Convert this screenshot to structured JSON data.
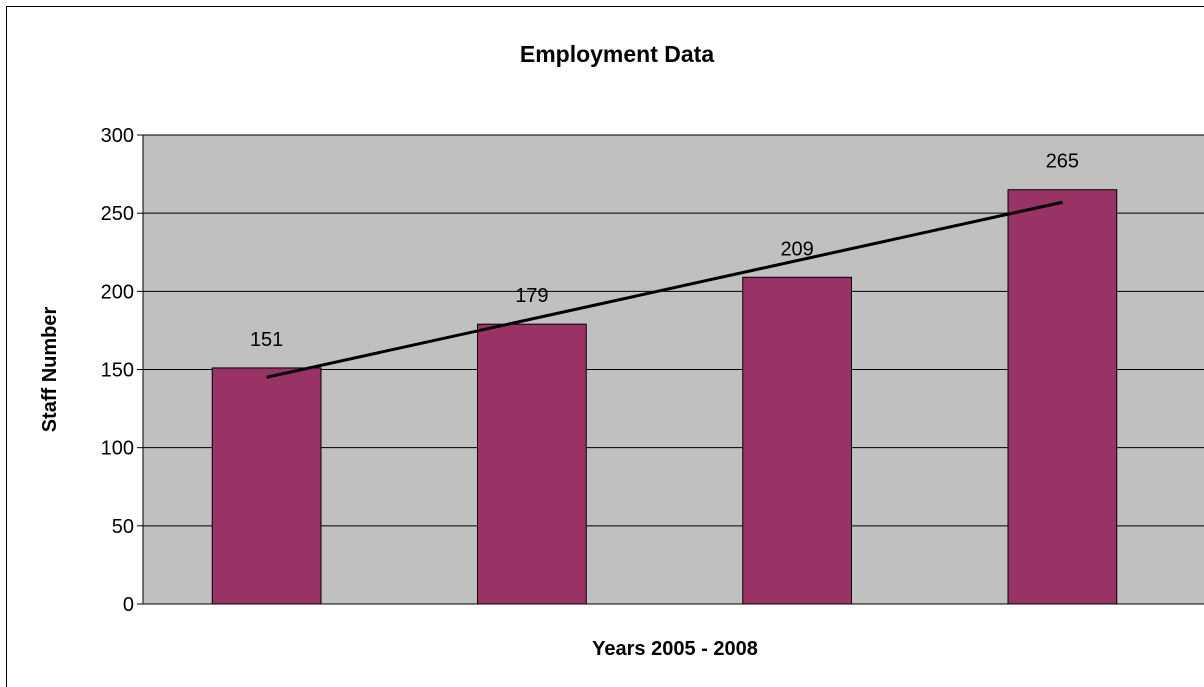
{
  "chart_data": {
    "type": "bar",
    "title": "Employment Data",
    "xlabel": "Years 2005 - 2008",
    "ylabel": "Staff Number",
    "categories": [
      "",
      "",
      "",
      ""
    ],
    "values": [
      151,
      179,
      209,
      265
    ],
    "data_labels": [
      "151",
      "179",
      "209",
      "265"
    ],
    "ylim": [
      0,
      300
    ],
    "yticks": [
      0,
      50,
      100,
      150,
      200,
      250,
      300
    ],
    "grid": true,
    "legend": "none",
    "trendline": {
      "type": "linear",
      "start": 145,
      "end": 257
    },
    "colors": {
      "bar": "#993366",
      "plot_background": "#c0c0c0",
      "gridline": "#000000",
      "trendline": "#000000"
    }
  }
}
